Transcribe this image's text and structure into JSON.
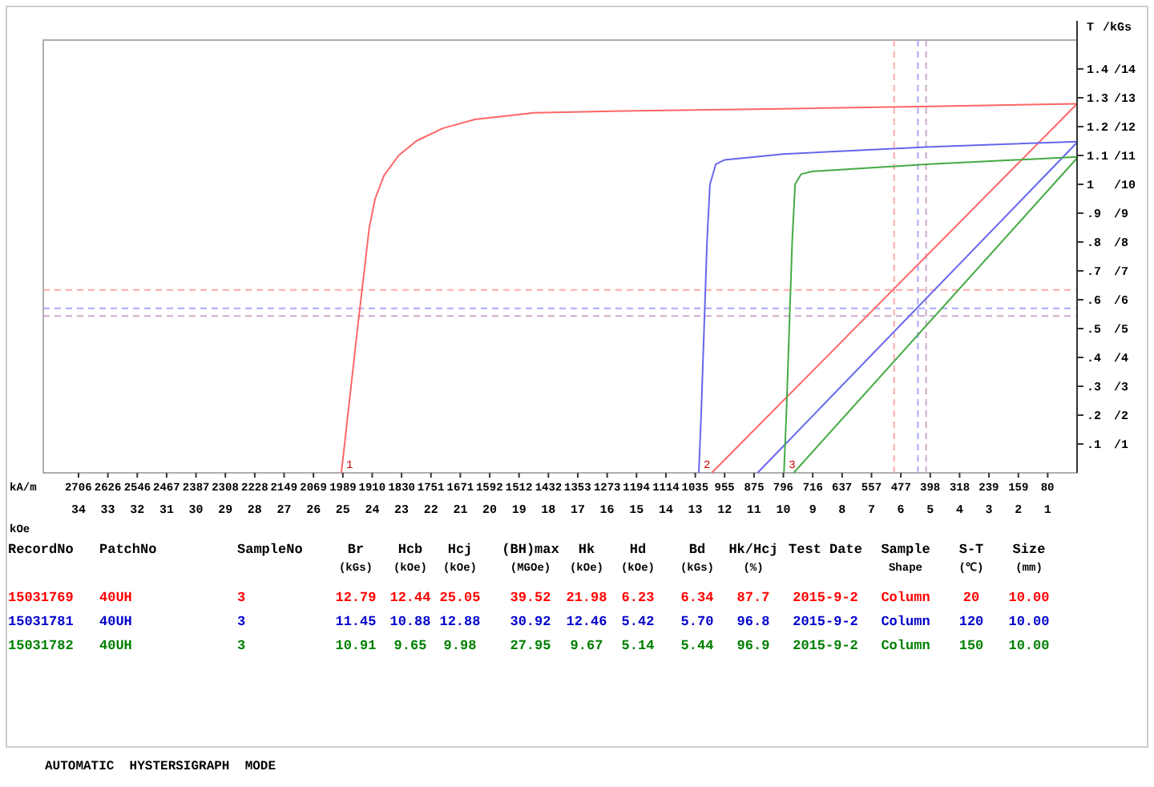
{
  "chart_data": [
    {
      "type": "line",
      "ylabel": "T",
      "xlabel": "kOe",
      "x2label": "kA/m",
      "xlim": [
        35.2,
        0
      ],
      "xticks": [
        34,
        33,
        32,
        31,
        30,
        29,
        28,
        27,
        26,
        25,
        24,
        23,
        22,
        21,
        20,
        19,
        18,
        17,
        16,
        15,
        14,
        13,
        12,
        11,
        10,
        9,
        8,
        7,
        6,
        5,
        4,
        3,
        2,
        1
      ],
      "x2lim": [
        2801,
        0
      ],
      "x2ticks": [
        2706,
        2626,
        2546,
        2467,
        2387,
        2308,
        2228,
        2149,
        2069,
        1989,
        1910,
        1830,
        1751,
        1671,
        1592,
        1512,
        1432,
        1353,
        1273,
        1194,
        1114,
        1035,
        955,
        875,
        796,
        716,
        637,
        557,
        477,
        398,
        318,
        239,
        159,
        80
      ],
      "ylim": [
        0,
        1.5
      ],
      "yticks": [
        {
          "value": 0.1,
          "label": ".1"
        },
        {
          "value": 0.2,
          "label": ".2"
        },
        {
          "value": 0.3,
          "label": ".3"
        },
        {
          "value": 0.4,
          "label": ".4"
        },
        {
          "value": 0.5,
          "label": ".5"
        },
        {
          "value": 0.6,
          "label": ".6"
        },
        {
          "value": 0.7,
          "label": ".7"
        },
        {
          "value": 0.8,
          "label": ".8"
        },
        {
          "value": 0.9,
          "label": ".9"
        },
        1,
        1.1,
        1.2,
        1.3,
        1.4
      ],
      "y2label": "/kGs",
      "y2lim": [
        0,
        15
      ],
      "y2ticks": [
        {
          "value": 1,
          "label": "/1"
        },
        {
          "value": 2,
          "label": "/2"
        },
        {
          "value": 3,
          "label": "/3"
        },
        {
          "value": 4,
          "label": "/4"
        },
        {
          "value": 5,
          "label": "/5"
        },
        {
          "value": 6,
          "label": "/6"
        },
        {
          "value": 7,
          "label": "/7"
        },
        {
          "value": 8,
          "label": "/8"
        },
        {
          "value": 9,
          "label": "/9"
        },
        {
          "value": 10,
          "label": "/10"
        },
        {
          "value": 11,
          "label": "/11"
        },
        {
          "value": 12,
          "label": "/12"
        },
        {
          "value": 13,
          "label": "/13"
        },
        {
          "value": 14,
          "label": "/14"
        }
      ],
      "grid": false,
      "marker": "none",
      "line_style": "solid",
      "series": [
        {
          "color": "#ff6666",
          "x": [
            0,
            5,
            10,
            15,
            18.5,
            20.5,
            21.6,
            22.5,
            23.1,
            23.6,
            23.9,
            24.1,
            24.5,
            25.05
          ],
          "values": [
            1.279,
            1.27,
            1.262,
            1.255,
            1.248,
            1.225,
            1.194,
            1.15,
            1.1,
            1.03,
            0.95,
            0.85,
            0.5,
            0
          ]
        },
        {
          "color": "#ff6666",
          "x": [
            0,
            12.44
          ],
          "values": [
            1.279,
            0
          ]
        },
        {
          "color": "#6666ee",
          "x": [
            0,
            5,
            10,
            12,
            12.3,
            12.5,
            12.6,
            12.7,
            12.8,
            12.88
          ],
          "values": [
            1.148,
            1.13,
            1.105,
            1.085,
            1.07,
            1.0,
            0.8,
            0.5,
            0.2,
            0
          ]
        },
        {
          "color": "#6666ee",
          "x": [
            0,
            10.88
          ],
          "values": [
            1.145,
            0
          ]
        },
        {
          "color": "#44aa44",
          "x": [
            0,
            5,
            9,
            9.4,
            9.6,
            9.7,
            9.8,
            9.9,
            9.98
          ],
          "values": [
            1.095,
            1.07,
            1.045,
            1.035,
            1.0,
            0.8,
            0.5,
            0.2,
            0
          ]
        },
        {
          "color": "#44aa44",
          "x": [
            0,
            9.65
          ],
          "values": [
            1.091,
            0
          ]
        }
      ],
      "ref_lines": [
        {
          "axis": "x",
          "value": 6.23,
          "color": "#ffaaaa",
          "line_style": "dashed"
        },
        {
          "axis": "y",
          "value": 0.634,
          "color": "#ffaaaa",
          "line_style": "dashed"
        },
        {
          "axis": "x",
          "value": 5.42,
          "color": "#aaaaff",
          "line_style": "dashed"
        },
        {
          "axis": "y",
          "value": 0.57,
          "color": "#aaaaff",
          "line_style": "dashed"
        },
        {
          "axis": "x",
          "value": 5.14,
          "color": "#ccaacc",
          "line_style": "dashed"
        },
        {
          "axis": "y",
          "value": 0.544,
          "color": "#ccaacc",
          "line_style": "dashed"
        }
      ],
      "annotations": [
        {
          "text": "1",
          "x": 25.05,
          "y": 0
        },
        {
          "text": "2",
          "x": 12.88,
          "y": 0
        },
        {
          "text": "3",
          "x": 9.98,
          "y": 0
        },
        "AUTOMATIC  HYSTERSIGRAPH  MODE"
      ]
    },
    {
      "type": "other",
      "categories": [
        "RecordNo",
        "PatchNo",
        "SampleNo",
        "Br\n(kGs)",
        "Hcb\n(kOe)",
        "Hcj\n(kOe)",
        "(BH)max\n(MGOe)",
        "Hk\n(kOe)",
        "Hd\n(kOe)",
        "Bd\n(kGs)",
        "Hk/Hcj\n(%)",
        "Test Date",
        "Sample\nShape",
        "S-T\n(℃)",
        "Size\n(mm)"
      ],
      "colors": [
        "#ff0000",
        "#0000cc",
        "#008000"
      ],
      "annotations": [
        "15031769",
        "40UH",
        "3",
        "12.79",
        "12.44",
        "25.05",
        "39.52",
        "21.98",
        "6.23",
        "6.34",
        "87.7",
        "2015-9-2",
        "Column",
        "20",
        "10.00",
        "15031781",
        "40UH",
        "3",
        "11.45",
        "10.88",
        "12.88",
        "30.92",
        "12.46",
        "5.42",
        "5.70",
        "96.8",
        "2015-9-2",
        "Column",
        "120",
        "10.00",
        "15031782",
        "40UH",
        "3",
        "10.91",
        "9.65",
        "9.98",
        "27.95",
        "9.67",
        "5.14",
        "5.44",
        "96.9",
        "2015-9-2",
        "Column",
        "150",
        "10.00"
      ]
    }
  ]
}
